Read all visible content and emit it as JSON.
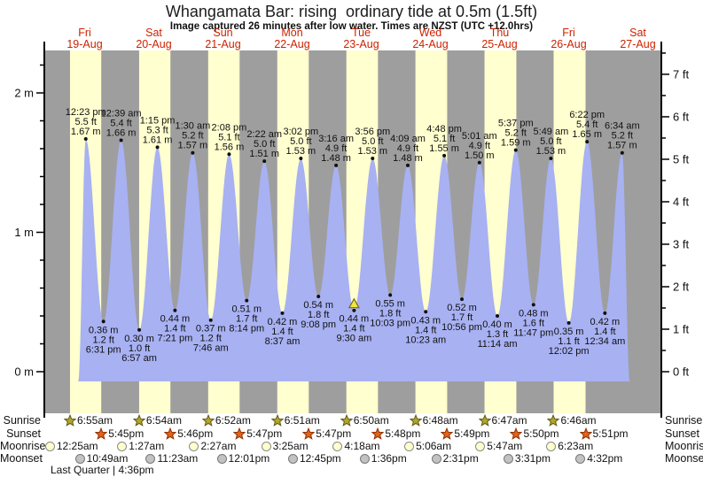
{
  "title": "Whangamata Bar: rising  ordinary tide at 0.5m (1.5ft)",
  "subtitle": "Image captured 26 minutes after low water. Times are NZST (UTC +12.0hrs)",
  "chart_data": {
    "type": "area",
    "series_name": "tide height",
    "days": [
      {
        "name": "Fri",
        "date": "19-Aug"
      },
      {
        "name": "Sat",
        "date": "20-Aug"
      },
      {
        "name": "Sun",
        "date": "21-Aug"
      },
      {
        "name": "Mon",
        "date": "22-Aug"
      },
      {
        "name": "Tue",
        "date": "23-Aug"
      },
      {
        "name": "Wed",
        "date": "24-Aug"
      },
      {
        "name": "Thu",
        "date": "25-Aug"
      },
      {
        "name": "Fri",
        "date": "26-Aug"
      },
      {
        "name": "Sat",
        "date": "27-Aug"
      }
    ],
    "y_left": {
      "unit": "m",
      "tick_labels": [
        "0 m",
        "1 m",
        "2 m"
      ],
      "labeled_values": [
        0,
        1,
        2
      ],
      "minor_step": 0.2,
      "minor_max": 2.2
    },
    "y_right": {
      "unit": "ft",
      "tick_labels": [
        "0 ft",
        "1 ft",
        "2 ft",
        "3 ft",
        "4 ft",
        "5 ft",
        "6 ft",
        "7 ft"
      ],
      "labeled_values": [
        0,
        1,
        2,
        3,
        4,
        5,
        6,
        7
      ],
      "minor_step": 0.5,
      "minor_max": 7.5
    },
    "ylim_m": [
      -0.3,
      2.3
    ],
    "extremes": [
      {
        "kind": "high",
        "day": 0,
        "time": "12:23 pm",
        "height_ft": "5.5 ft",
        "height_m": "1.67 m"
      },
      {
        "kind": "low",
        "day": 0,
        "time": "6:31 pm",
        "height_ft": "1.2 ft",
        "height_m": "0.36 m"
      },
      {
        "kind": "high",
        "day": 1,
        "time": "12:39 am",
        "height_ft": "5.4 ft",
        "height_m": "1.66 m"
      },
      {
        "kind": "low",
        "day": 1,
        "time": "6:57 am",
        "height_ft": "1.0 ft",
        "height_m": "0.30 m"
      },
      {
        "kind": "high",
        "day": 1,
        "time": "1:15 pm",
        "height_ft": "5.3 ft",
        "height_m": "1.61 m"
      },
      {
        "kind": "low",
        "day": 1,
        "time": "7:21 pm",
        "height_ft": "1.4 ft",
        "height_m": "0.44 m"
      },
      {
        "kind": "high",
        "day": 2,
        "time": "1:30 am",
        "height_ft": "5.2 ft",
        "height_m": "1.57 m"
      },
      {
        "kind": "low",
        "day": 2,
        "time": "7:46 am",
        "height_ft": "1.2 ft",
        "height_m": "0.37 m"
      },
      {
        "kind": "high",
        "day": 2,
        "time": "2:08 pm",
        "height_ft": "5.1 ft",
        "height_m": "1.56 m"
      },
      {
        "kind": "low",
        "day": 2,
        "time": "8:14 pm",
        "height_ft": "1.7 ft",
        "height_m": "0.51 m"
      },
      {
        "kind": "high",
        "day": 3,
        "time": "2:22 am",
        "height_ft": "5.0 ft",
        "height_m": "1.51 m"
      },
      {
        "kind": "low",
        "day": 3,
        "time": "8:37 am",
        "height_ft": "1.4 ft",
        "height_m": "0.42 m"
      },
      {
        "kind": "high",
        "day": 3,
        "time": "3:02 pm",
        "height_ft": "5.0 ft",
        "height_m": "1.53 m"
      },
      {
        "kind": "low",
        "day": 3,
        "time": "9:08 pm",
        "height_ft": "1.8 ft",
        "height_m": "0.54 m"
      },
      {
        "kind": "high",
        "day": 4,
        "time": "3:16 am",
        "height_ft": "4.9 ft",
        "height_m": "1.48 m"
      },
      {
        "kind": "low",
        "day": 4,
        "time": "9:30 am",
        "height_ft": "1.4 ft",
        "height_m": "0.44 m"
      },
      {
        "kind": "high",
        "day": 4,
        "time": "3:56 pm",
        "height_ft": "5.0 ft",
        "height_m": "1.53 m"
      },
      {
        "kind": "low",
        "day": 4,
        "time": "10:03 pm",
        "height_ft": "1.8 ft",
        "height_m": "0.55 m"
      },
      {
        "kind": "high",
        "day": 5,
        "time": "4:09 am",
        "height_ft": "4.9 ft",
        "height_m": "1.48 m"
      },
      {
        "kind": "low",
        "day": 5,
        "time": "10:23 am",
        "height_ft": "1.4 ft",
        "height_m": "0.43 m"
      },
      {
        "kind": "high",
        "day": 5,
        "time": "4:48 pm",
        "height_ft": "5.1 ft",
        "height_m": "1.55 m"
      },
      {
        "kind": "low",
        "day": 5,
        "time": "10:56 pm",
        "height_ft": "1.7 ft",
        "height_m": "0.52 m"
      },
      {
        "kind": "high",
        "day": 6,
        "time": "5:01 am",
        "height_ft": "4.9 ft",
        "height_m": "1.50 m"
      },
      {
        "kind": "low",
        "day": 6,
        "time": "11:14 am",
        "height_ft": "1.3 ft",
        "height_m": "0.40 m"
      },
      {
        "kind": "high",
        "day": 6,
        "time": "5:37 pm",
        "height_ft": "5.2 ft",
        "height_m": "1.59 m"
      },
      {
        "kind": "low",
        "day": 6,
        "time": "11:47 pm",
        "height_ft": "1.6 ft",
        "height_m": "0.48 m"
      },
      {
        "kind": "high",
        "day": 7,
        "time": "5:49 am",
        "height_ft": "5.0 ft",
        "height_m": "1.53 m"
      },
      {
        "kind": "low",
        "day": 7,
        "time": "12:02 pm",
        "height_ft": "1.1 ft",
        "height_m": "0.35 m"
      },
      {
        "kind": "high",
        "day": 7,
        "time": "6:22 pm",
        "height_ft": "5.4 ft",
        "height_m": "1.65 m"
      },
      {
        "kind": "low",
        "day": 8,
        "time": "12:34 am",
        "height_ft": "1.4 ft",
        "height_m": "0.42 m"
      },
      {
        "kind": "high",
        "day": 8,
        "time": "6:34 am",
        "height_ft": "5.2 ft",
        "height_m": "1.57 m"
      }
    ],
    "current_marker": {
      "extreme_index": 15
    }
  },
  "almanac": {
    "rows": [
      {
        "id": "sunrise",
        "label": "Sunrise",
        "icon": "sunrise-star-icon",
        "times": [
          "6:55am",
          "6:54am",
          "6:52am",
          "6:51am",
          "6:50am",
          "6:48am",
          "6:47am",
          "6:46am"
        ]
      },
      {
        "id": "sunset",
        "label": "Sunset",
        "icon": "sunset-star-icon",
        "times": [
          "5:45pm",
          "5:46pm",
          "5:47pm",
          "5:47pm",
          "5:48pm",
          "5:49pm",
          "5:50pm",
          "5:51pm"
        ]
      },
      {
        "id": "moonrise",
        "label": "Moonrise",
        "icon": "moonrise-circle-icon",
        "times": [
          "12:25am",
          "1:27am",
          "2:27am",
          "3:25am",
          "4:18am",
          "5:06am",
          "5:47am",
          "6:23am"
        ]
      },
      {
        "id": "moonset",
        "label": "Moonset",
        "icon": "moonset-circle-icon",
        "times": [
          "10:49am",
          "11:23am",
          "12:01pm",
          "12:45pm",
          "1:36pm",
          "2:31pm",
          "3:31pm",
          "4:32pm"
        ]
      }
    ],
    "moon_phase_note": "Last Quarter | 4:36pm"
  },
  "colors": {
    "night_band": "#9e9e9e",
    "day_band": "#ffffcf",
    "tide_fill": "#a8b1f2",
    "axis": "#000000",
    "day_label": "#cc2200",
    "extreme_dot": "#111111",
    "marker_fill": "#f5e73c",
    "marker_stroke": "#6b6b1f",
    "sunrise_star_fill": "#b3a432",
    "sunrise_star_stroke": "#5f5a10",
    "sunset_star_fill": "#e06418",
    "sunset_star_stroke": "#8f2e00",
    "moonrise_fill": "#ffffcc",
    "moonrise_stroke": "#8a8a8a",
    "moonset_fill": "#c2c2c2",
    "moonset_stroke": "#787878"
  }
}
